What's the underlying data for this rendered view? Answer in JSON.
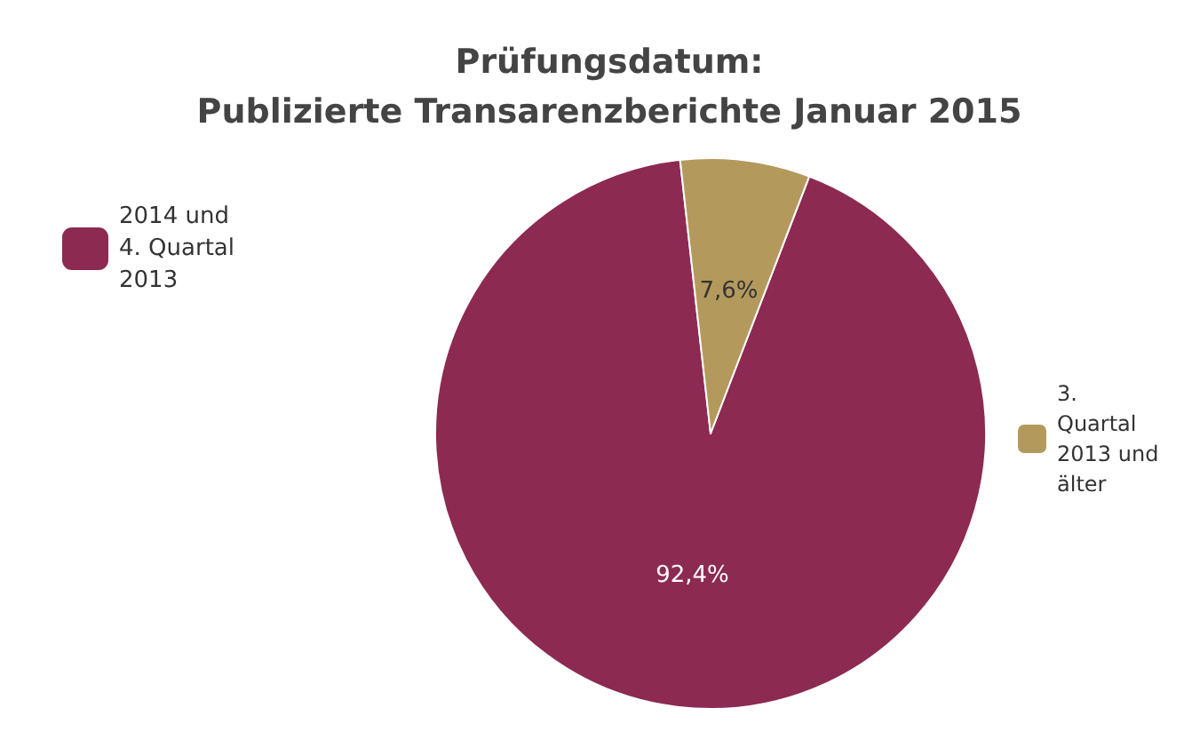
{
  "chart_data": {
    "type": "pie",
    "title": "Prüfungsdatum:\nPublizierte Transarenzberichte Januar 2015",
    "categories": [
      "2014 und 4. Quartal 2013",
      "3. Quartal 2013 und älter"
    ],
    "values": [
      92.4,
      7.6
    ],
    "colors": [
      "#8c2a52",
      "#b39a5c"
    ],
    "value_labels": [
      "92,4%",
      "7,6%"
    ],
    "legend": "left"
  }
}
